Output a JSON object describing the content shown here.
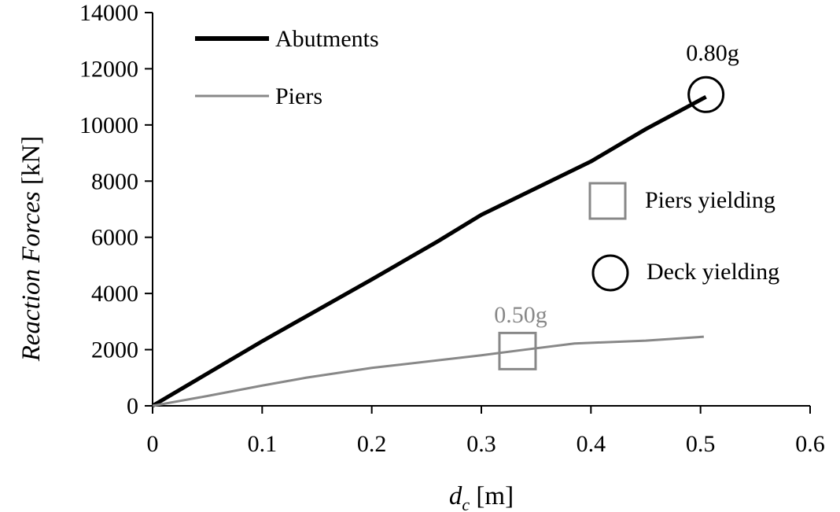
{
  "chart_data": {
    "type": "line",
    "x_axis": {
      "label_symbol": "d",
      "label_subscript": "c",
      "label_unit": " [m]",
      "ticks": [
        "0",
        "0.1",
        "0.2",
        "0.3",
        "0.4",
        "0.5",
        "0.6"
      ],
      "lim": [
        0,
        0.6
      ]
    },
    "y_axis": {
      "label_italic": "Reaction Forces",
      "label_unit": " [kN]",
      "ticks": [
        "0",
        "2000",
        "4000",
        "6000",
        "8000",
        "10000",
        "12000",
        "14000"
      ],
      "lim": [
        0,
        14000
      ]
    },
    "grid": false,
    "legend_position": "top-left",
    "series": [
      {
        "name": "Abutments",
        "color": "#000000",
        "x": [
          0,
          0.1,
          0.2,
          0.26,
          0.3,
          0.4,
          0.45,
          0.505
        ],
        "y": [
          0,
          2300,
          4500,
          5850,
          6800,
          8700,
          9850,
          11000
        ]
      },
      {
        "name": "Piers",
        "color": "#888888",
        "x": [
          0,
          0.05,
          0.1,
          0.14,
          0.2,
          0.3,
          0.34,
          0.385,
          0.45,
          0.503
        ],
        "y": [
          0,
          350,
          720,
          1000,
          1350,
          1800,
          2000,
          2220,
          2320,
          2460
        ]
      }
    ],
    "markers": {
      "piers_yielding": {
        "label": "Piers yielding",
        "shape": "square",
        "color": "#888888",
        "x": 0.333,
        "y": 1950,
        "annotation": "0.50g"
      },
      "deck_yielding": {
        "label": "Deck yielding",
        "shape": "circle",
        "color": "#000000",
        "x": 0.505,
        "y": 11080,
        "annotation": "0.80g"
      }
    }
  }
}
